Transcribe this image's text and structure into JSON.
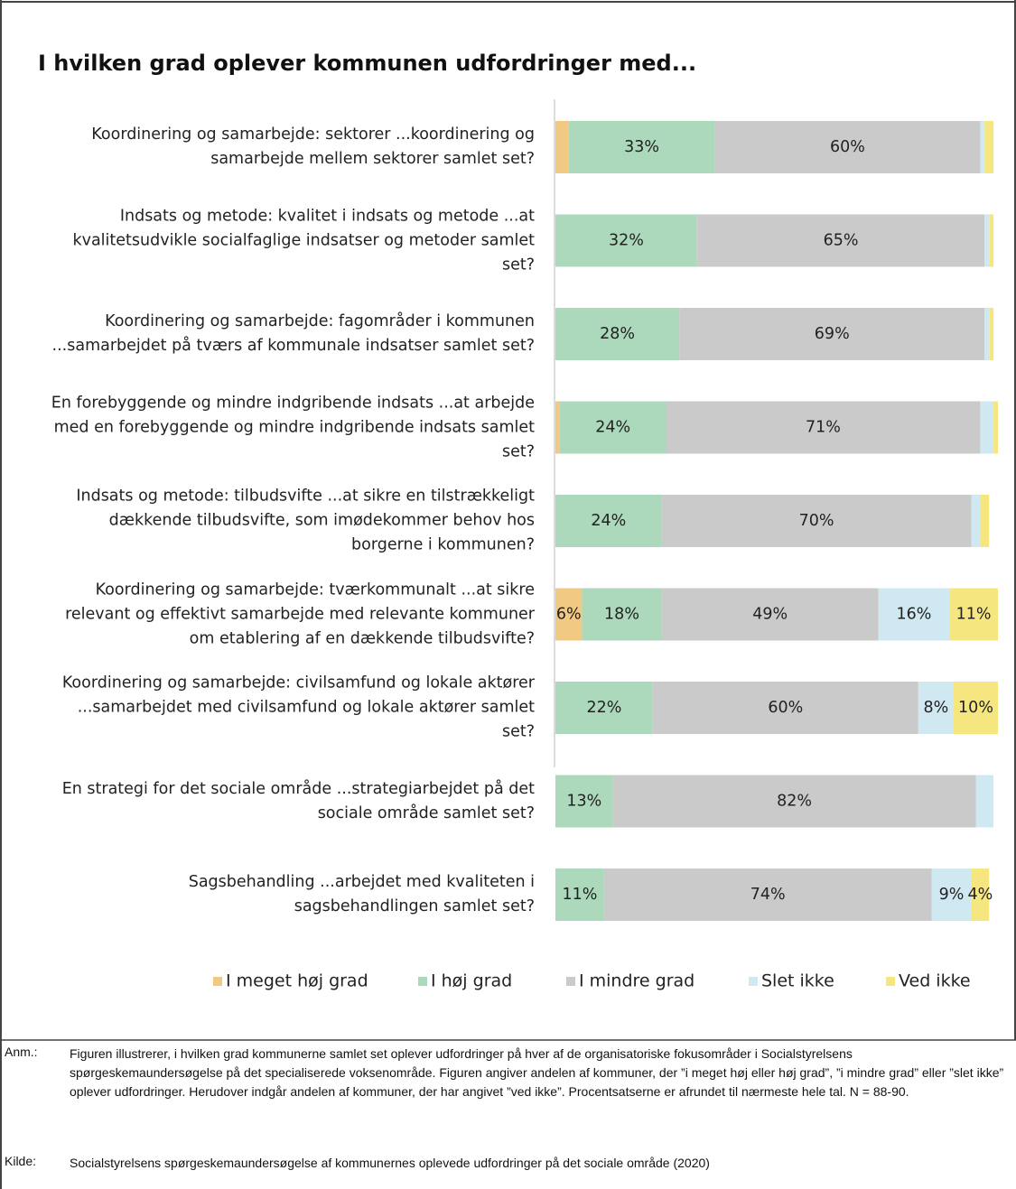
{
  "chart_data": {
    "type": "stacked_barh",
    "title": "I hvilken grad oplever kommunen udfordringer med...",
    "categories": [
      "Koordinering og samarbejde: sektorer ...koordinering og samarbejde mellem sektorer samlet set?",
      "Indsats og metode: kvalitet i indsats og metode ...at kvalitetsudvikle socialfaglige indsatser og metoder samlet set?",
      "Koordinering og samarbejde: fagområder i kommunen ...samarbejdet på tværs af kommunale indsatser samlet set?",
      "En forebyggende og mindre indgribende indsats ...at arbejde med en forebyggende og mindre indgribende indsats samlet set?",
      "Indsats og metode: tilbudsvifte ...at sikre en tilstrækkeligt dækkende tilbudsvifte, som imødekommer behov hos borgerne i kommunen?",
      "Koordinering og samarbejde: tværkommunalt ...at sikre relevant og effektivt samarbejde med relevante kommuner om etablering af en dækkende tilbudsvifte?",
      "Koordinering og samarbejde: civilsamfund og lokale aktører ...samarbejdet med civilsamfund og lokale aktører samlet set?",
      "En strategi for det sociale område ...strategiarbejdet på det sociale område samlet set?",
      "Sagsbehandling ...arbejdet med kvaliteten i sagsbehandlingen samlet set?"
    ],
    "series": [
      {
        "name": "I meget høj grad",
        "color": "#f2c983",
        "values": [
          3,
          0,
          0,
          1,
          0,
          6,
          0,
          0,
          0
        ],
        "value_labels": [
          null,
          null,
          null,
          null,
          null,
          "6%",
          null,
          null,
          null
        ]
      },
      {
        "name": "I høj grad",
        "color": "#acd9bb",
        "values": [
          33,
          32,
          28,
          24,
          24,
          18,
          22,
          13,
          11
        ],
        "value_labels": [
          "33%",
          "32%",
          "28%",
          "24%",
          "24%",
          "18%",
          "22%",
          "13%",
          "11%"
        ]
      },
      {
        "name": "I mindre grad",
        "color": "#cacaca",
        "values": [
          60,
          65,
          69,
          71,
          70,
          49,
          60,
          82,
          74
        ],
        "value_labels": [
          "60%",
          "65%",
          "69%",
          "71%",
          "70%",
          "49%",
          "60%",
          "82%",
          "74%"
        ]
      },
      {
        "name": "Slet ikke",
        "color": "#cfe8f1",
        "values": [
          1,
          1,
          1,
          3,
          2,
          16,
          8,
          4,
          9
        ],
        "value_labels": [
          null,
          null,
          null,
          null,
          null,
          "16%",
          "8%",
          null,
          "9%"
        ]
      },
      {
        "name": "Ved ikke",
        "color": "#f6e680",
        "values": [
          2,
          1,
          1,
          1,
          2,
          11,
          10,
          0,
          4
        ],
        "value_labels": [
          null,
          null,
          null,
          null,
          null,
          "11%",
          "10%",
          null,
          "4%"
        ]
      }
    ],
    "xlim": [
      0,
      100
    ]
  },
  "notes": [
    {
      "label": "Anm.:",
      "text": "Figuren illustrerer, i hvilken grad kommunerne samlet set oplever udfordringer på hver af de organisatoriske fokusområder i Socialstyrelsens spørgeskemaundersøgelse på det specialiserede voksenområde. Figuren angiver andelen af kommuner, der ”i meget høj eller høj grad”, ”i mindre grad” eller ”slet ikke” oplever udfordringer. Herudover indgår andelen af kommuner, der har angivet ”ved ikke”. Procentsatserne er afrundet til nærmeste hele tal. N = 88-90."
    },
    {
      "label": "Kilde:",
      "text": "Socialstyrelsens spørgeskemaundersøgelse af kommunernes oplevede udfordringer på det sociale område (2020)"
    }
  ]
}
